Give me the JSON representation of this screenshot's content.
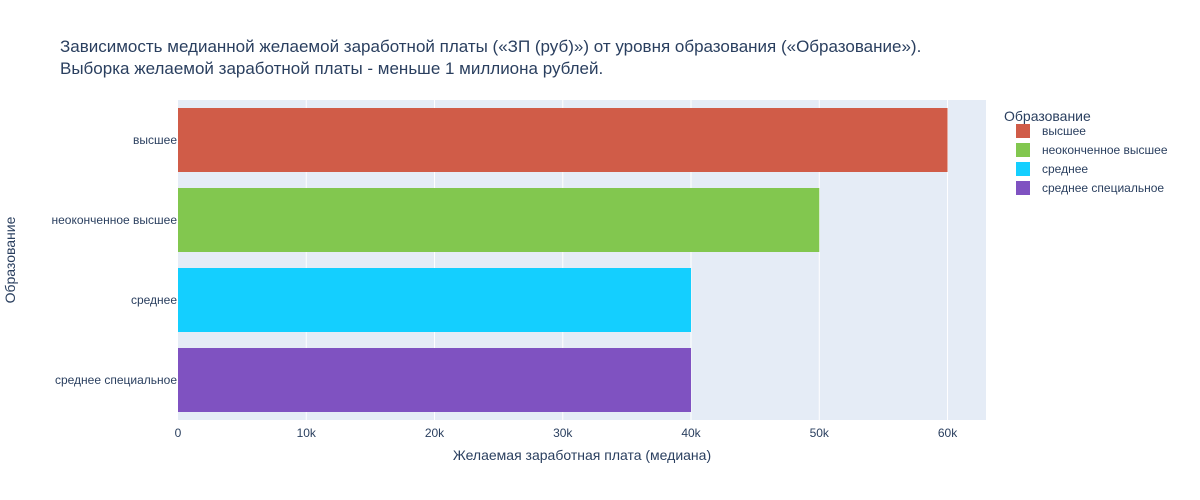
{
  "chart_data": {
    "type": "bar",
    "orientation": "horizontal",
    "title_lines": [
      "Зависимость медианной желаемой заработной платы («ЗП (руб)») от уровня образования («Образование»).",
      "Выборка желаемой заработной платы - меньше 1 миллиона рублей."
    ],
    "xlabel": "Желаемая заработная плата (медиана)",
    "ylabel": "Образование",
    "xlim": [
      0,
      63000
    ],
    "xticks": [
      0,
      10000,
      20000,
      30000,
      40000,
      50000,
      60000
    ],
    "xtick_labels": [
      "0",
      "10k",
      "20k",
      "30k",
      "40k",
      "50k",
      "60k"
    ],
    "categories": [
      "высшее",
      "неоконченное высшее",
      "среднее",
      "среднее специальное"
    ],
    "values": [
      60000,
      50000,
      40000,
      40000
    ],
    "colors": [
      "#D05C48",
      "#82C74F",
      "#14CFFF",
      "#7F52C1"
    ],
    "grid": true,
    "legend": {
      "title": "Образование",
      "placement": "top-right",
      "entries": [
        "высшее",
        "неоконченное высшее",
        "среднее",
        "среднее специальное"
      ]
    }
  }
}
